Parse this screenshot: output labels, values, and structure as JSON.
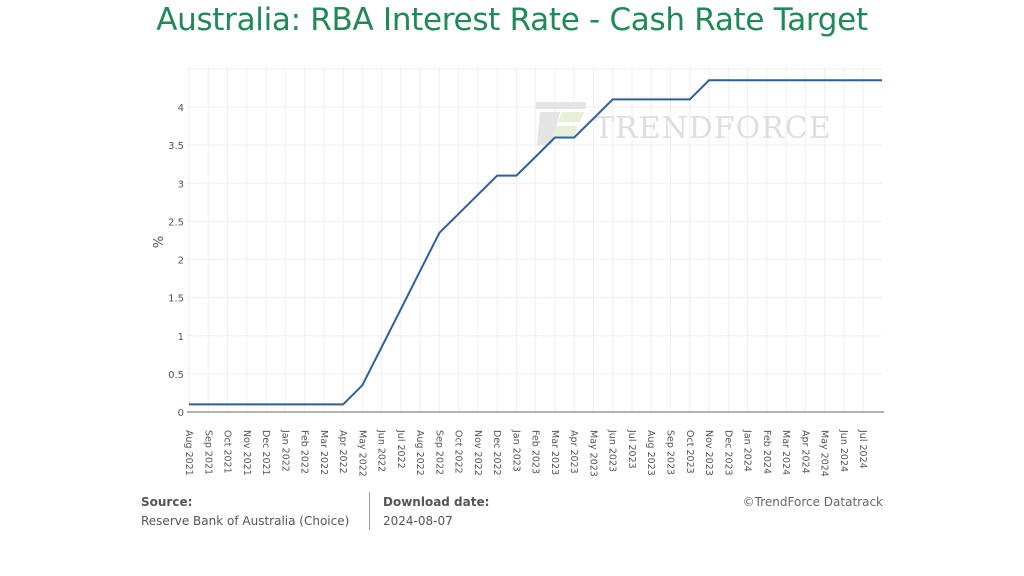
{
  "title": "Australia: RBA Interest Rate - Cash Rate Target",
  "watermark": "TrendForce",
  "footer": {
    "source_label": "Source:",
    "source_value": "Reserve Bank of Australia (Choice)",
    "download_label": "Download date:",
    "download_value": "2024-08-07",
    "copyright": "©TrendForce Datatrack"
  },
  "colors": {
    "title": "#1f8a55",
    "line": "#2e5e9e",
    "grid": "#eeeeee",
    "axis": "#999999"
  },
  "chart_data": {
    "type": "line",
    "title": "Australia: RBA Interest Rate - Cash Rate Target",
    "xlabel": "",
    "ylabel": "%",
    "ylim": [
      0,
      4.5
    ],
    "yticks": [
      0,
      0.5,
      1,
      1.5,
      2,
      2.5,
      3,
      3.5,
      4
    ],
    "ytick_labels": [
      "0",
      "0.5",
      "1",
      "1.5",
      "2",
      "2.5",
      "3",
      "3.5",
      "4"
    ],
    "grid": true,
    "legend": null,
    "categories": [
      "Aug 2021",
      "Sep 2021",
      "Oct 2021",
      "Nov 2021",
      "Dec 2021",
      "Jan 2022",
      "Feb 2022",
      "Mar 2022",
      "Apr 2022",
      "May 2022",
      "Jun 2022",
      "Jul 2022",
      "Aug 2022",
      "Sep 2022",
      "Oct 2022",
      "Nov 2022",
      "Dec 2022",
      "Jan 2023",
      "Feb 2023",
      "Mar 2023",
      "Apr 2023",
      "May 2023",
      "Jun 2023",
      "Jul 2023",
      "Aug 2023",
      "Sep 2023",
      "Oct 2023",
      "Nov 2023",
      "Dec 2023",
      "Jan 2024",
      "Feb 2024",
      "Mar 2024",
      "Apr 2024",
      "May 2024",
      "Jun 2024",
      "Jul 2024"
    ],
    "series": [
      {
        "name": "Cash Rate Target",
        "values": [
          0.1,
          0.1,
          0.1,
          0.1,
          0.1,
          0.1,
          0.1,
          0.1,
          0.1,
          0.35,
          0.85,
          1.35,
          1.85,
          2.35,
          2.6,
          2.85,
          3.1,
          3.1,
          3.35,
          3.6,
          3.6,
          3.85,
          4.1,
          4.1,
          4.1,
          4.1,
          4.1,
          4.35,
          4.35,
          4.35,
          4.35,
          4.35,
          4.35,
          4.35,
          4.35,
          4.35
        ],
        "last_value_extends_to": 4.35
      }
    ]
  }
}
